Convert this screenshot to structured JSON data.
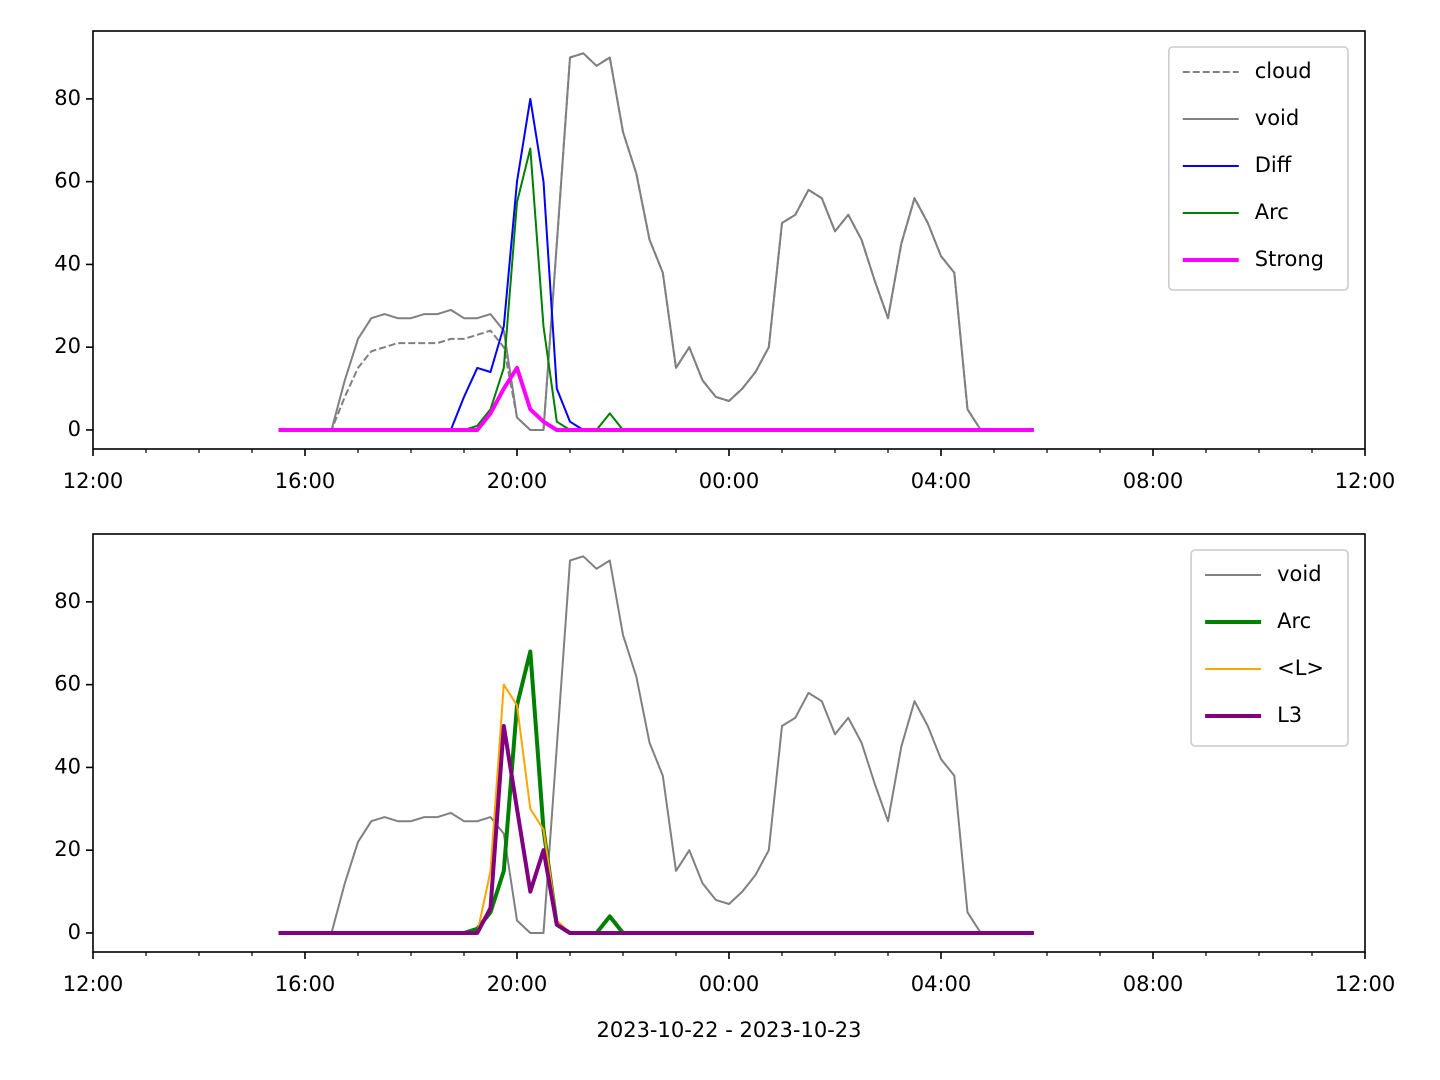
{
  "chart_data": [
    {
      "type": "line",
      "x": [
        "2023-10-22T15:30",
        "2023-10-22T15:45",
        "2023-10-22T16:00",
        "2023-10-22T16:15",
        "2023-10-22T16:30",
        "2023-10-22T16:45",
        "2023-10-22T17:00",
        "2023-10-22T17:15",
        "2023-10-22T17:30",
        "2023-10-22T17:45",
        "2023-10-22T18:00",
        "2023-10-22T18:15",
        "2023-10-22T18:30",
        "2023-10-22T18:45",
        "2023-10-22T19:00",
        "2023-10-22T19:15",
        "2023-10-22T19:30",
        "2023-10-22T19:45",
        "2023-10-22T20:00",
        "2023-10-22T20:15",
        "2023-10-22T20:30",
        "2023-10-22T20:45",
        "2023-10-22T21:00",
        "2023-10-22T21:15",
        "2023-10-22T21:30",
        "2023-10-22T21:45",
        "2023-10-22T22:00",
        "2023-10-22T22:15",
        "2023-10-22T22:30",
        "2023-10-22T22:45",
        "2023-10-22T23:00",
        "2023-10-22T23:15",
        "2023-10-22T23:30",
        "2023-10-22T23:45",
        "2023-10-23T00:00",
        "2023-10-23T00:15",
        "2023-10-23T00:30",
        "2023-10-23T00:45",
        "2023-10-23T01:00",
        "2023-10-23T01:15",
        "2023-10-23T01:30",
        "2023-10-23T01:45",
        "2023-10-23T02:00",
        "2023-10-23T02:15",
        "2023-10-23T02:30",
        "2023-10-23T02:45",
        "2023-10-23T03:00",
        "2023-10-23T03:15",
        "2023-10-23T03:30",
        "2023-10-23T03:45",
        "2023-10-23T04:00",
        "2023-10-23T04:15",
        "2023-10-23T04:30",
        "2023-10-23T04:45",
        "2023-10-23T05:00",
        "2023-10-23T05:15",
        "2023-10-23T05:30",
        "2023-10-23T05:45"
      ],
      "series": [
        {
          "name": "cloud",
          "color": "#808080",
          "linewidth": 2,
          "linestyle": "dashed",
          "values": [
            0,
            0,
            0,
            0,
            0,
            8,
            15,
            19,
            20,
            21,
            21,
            21,
            21,
            22,
            22,
            23,
            24,
            20,
            3,
            0,
            0,
            45,
            90,
            91,
            88,
            90,
            72,
            62,
            46,
            38,
            15,
            20,
            12,
            8,
            7,
            10,
            14,
            20,
            50,
            52,
            58,
            56,
            48,
            52,
            46,
            36,
            27,
            45,
            56,
            50,
            42,
            38,
            5,
            0,
            0,
            0,
            0,
            0
          ]
        },
        {
          "name": "void",
          "color": "#808080",
          "linewidth": 2,
          "linestyle": "solid",
          "values": [
            0,
            0,
            0,
            0,
            0,
            12,
            22,
            27,
            28,
            27,
            27,
            28,
            28,
            29,
            27,
            27,
            28,
            24,
            3,
            0,
            0,
            45,
            90,
            91,
            88,
            90,
            72,
            62,
            46,
            38,
            15,
            20,
            12,
            8,
            7,
            10,
            14,
            20,
            50,
            52,
            58,
            56,
            48,
            52,
            46,
            36,
            27,
            45,
            56,
            50,
            42,
            38,
            5,
            0,
            0,
            0,
            0,
            0
          ]
        },
        {
          "name": "Diff",
          "color": "#0000ff",
          "linewidth": 2,
          "linestyle": "solid",
          "values": [
            0,
            0,
            0,
            0,
            0,
            0,
            0,
            0,
            0,
            0,
            0,
            0,
            0,
            0,
            8,
            15,
            14,
            25,
            60,
            80,
            60,
            10,
            2,
            0,
            0,
            0,
            0,
            0,
            0,
            0,
            0,
            0,
            0,
            0,
            0,
            0,
            0,
            0,
            0,
            0,
            0,
            0,
            0,
            0,
            0,
            0,
            0,
            0,
            0,
            0,
            0,
            0,
            0,
            0,
            0,
            0,
            0,
            0
          ]
        },
        {
          "name": "Arc",
          "color": "#008000",
          "linewidth": 2,
          "linestyle": "solid",
          "values": [
            0,
            0,
            0,
            0,
            0,
            0,
            0,
            0,
            0,
            0,
            0,
            0,
            0,
            0,
            0,
            1,
            5,
            15,
            55,
            68,
            25,
            2,
            0,
            0,
            0,
            4,
            0,
            0,
            0,
            0,
            0,
            0,
            0,
            0,
            0,
            0,
            0,
            0,
            0,
            0,
            0,
            0,
            0,
            0,
            0,
            0,
            0,
            0,
            0,
            0,
            0,
            0,
            0,
            0,
            0,
            0,
            0,
            0
          ]
        },
        {
          "name": "Strong",
          "color": "#ff00ff",
          "linewidth": 4,
          "linestyle": "solid",
          "values": [
            0,
            0,
            0,
            0,
            0,
            0,
            0,
            0,
            0,
            0,
            0,
            0,
            0,
            0,
            0,
            0,
            4,
            10,
            15,
            5,
            2,
            0,
            0,
            0,
            0,
            0,
            0,
            0,
            0,
            0,
            0,
            0,
            0,
            0,
            0,
            0,
            0,
            0,
            0,
            0,
            0,
            0,
            0,
            0,
            0,
            0,
            0,
            0,
            0,
            0,
            0,
            0,
            0,
            0,
            0,
            0,
            0,
            0
          ]
        }
      ],
      "xlim": [
        "2023-10-22T12:00",
        "2023-10-23T12:00"
      ],
      "xticks": [
        {
          "value": "2023-10-22T12:00",
          "label": "12:00"
        },
        {
          "value": "2023-10-22T16:00",
          "label": "16:00"
        },
        {
          "value": "2023-10-22T20:00",
          "label": "20:00"
        },
        {
          "value": "2023-10-23T00:00",
          "label": "00:00"
        },
        {
          "value": "2023-10-23T04:00",
          "label": "04:00"
        },
        {
          "value": "2023-10-23T08:00",
          "label": "08:00"
        },
        {
          "value": "2023-10-23T12:00",
          "label": "12:00"
        }
      ],
      "xminorticks": [
        "2023-10-22T13:00",
        "2023-10-22T14:00",
        "2023-10-22T15:00",
        "2023-10-22T17:00",
        "2023-10-22T18:00",
        "2023-10-22T19:00",
        "2023-10-22T21:00",
        "2023-10-22T22:00",
        "2023-10-22T23:00",
        "2023-10-23T01:00",
        "2023-10-23T02:00",
        "2023-10-23T03:00",
        "2023-10-23T05:00",
        "2023-10-23T06:00",
        "2023-10-23T07:00",
        "2023-10-23T09:00",
        "2023-10-23T10:00",
        "2023-10-23T11:00"
      ],
      "ylim": [
        -4.6,
        96.4
      ],
      "yticks": [
        0,
        20,
        40,
        60,
        80
      ],
      "legend": "upper right"
    },
    {
      "type": "line",
      "x": [
        "2023-10-22T15:30",
        "2023-10-22T15:45",
        "2023-10-22T16:00",
        "2023-10-22T16:15",
        "2023-10-22T16:30",
        "2023-10-22T16:45",
        "2023-10-22T17:00",
        "2023-10-22T17:15",
        "2023-10-22T17:30",
        "2023-10-22T17:45",
        "2023-10-22T18:00",
        "2023-10-22T18:15",
        "2023-10-22T18:30",
        "2023-10-22T18:45",
        "2023-10-22T19:00",
        "2023-10-22T19:15",
        "2023-10-22T19:30",
        "2023-10-22T19:45",
        "2023-10-22T20:00",
        "2023-10-22T20:15",
        "2023-10-22T20:30",
        "2023-10-22T20:45",
        "2023-10-22T21:00",
        "2023-10-22T21:15",
        "2023-10-22T21:30",
        "2023-10-22T21:45",
        "2023-10-22T22:00",
        "2023-10-22T22:15",
        "2023-10-22T22:30",
        "2023-10-22T22:45",
        "2023-10-22T23:00",
        "2023-10-22T23:15",
        "2023-10-22T23:30",
        "2023-10-22T23:45",
        "2023-10-23T00:00",
        "2023-10-23T00:15",
        "2023-10-23T00:30",
        "2023-10-23T00:45",
        "2023-10-23T01:00",
        "2023-10-23T01:15",
        "2023-10-23T01:30",
        "2023-10-23T01:45",
        "2023-10-23T02:00",
        "2023-10-23T02:15",
        "2023-10-23T02:30",
        "2023-10-23T02:45",
        "2023-10-23T03:00",
        "2023-10-23T03:15",
        "2023-10-23T03:30",
        "2023-10-23T03:45",
        "2023-10-23T04:00",
        "2023-10-23T04:15",
        "2023-10-23T04:30",
        "2023-10-23T04:45",
        "2023-10-23T05:00",
        "2023-10-23T05:15",
        "2023-10-23T05:30",
        "2023-10-23T05:45"
      ],
      "series": [
        {
          "name": "void",
          "color": "#808080",
          "linewidth": 2,
          "linestyle": "solid",
          "values": [
            0,
            0,
            0,
            0,
            0,
            12,
            22,
            27,
            28,
            27,
            27,
            28,
            28,
            29,
            27,
            27,
            28,
            24,
            3,
            0,
            0,
            45,
            90,
            91,
            88,
            90,
            72,
            62,
            46,
            38,
            15,
            20,
            12,
            8,
            7,
            10,
            14,
            20,
            50,
            52,
            58,
            56,
            48,
            52,
            46,
            36,
            27,
            45,
            56,
            50,
            42,
            38,
            5,
            0,
            0,
            0,
            0,
            0
          ]
        },
        {
          "name": "Arc",
          "color": "#008000",
          "linewidth": 4,
          "linestyle": "solid",
          "values": [
            0,
            0,
            0,
            0,
            0,
            0,
            0,
            0,
            0,
            0,
            0,
            0,
            0,
            0,
            0,
            1,
            5,
            15,
            55,
            68,
            25,
            2,
            0,
            0,
            0,
            4,
            0,
            0,
            0,
            0,
            0,
            0,
            0,
            0,
            0,
            0,
            0,
            0,
            0,
            0,
            0,
            0,
            0,
            0,
            0,
            0,
            0,
            0,
            0,
            0,
            0,
            0,
            0,
            0,
            0,
            0,
            0,
            0
          ]
        },
        {
          "name": "<L>",
          "color": "#ffa500",
          "linewidth": 2,
          "linestyle": "solid",
          "values": [
            0,
            0,
            0,
            0,
            0,
            0,
            0,
            0,
            0,
            0,
            0,
            0,
            0,
            0,
            0,
            0,
            15,
            60,
            55,
            30,
            25,
            3,
            0,
            0,
            0,
            0,
            0,
            0,
            0,
            0,
            0,
            0,
            0,
            0,
            0,
            0,
            0,
            0,
            0,
            0,
            0,
            0,
            0,
            0,
            0,
            0,
            0,
            0,
            0,
            0,
            0,
            0,
            0,
            0,
            0,
            0,
            0,
            0
          ]
        },
        {
          "name": "L3",
          "color": "#800080",
          "linewidth": 4,
          "linestyle": "solid",
          "values": [
            0,
            0,
            0,
            0,
            0,
            0,
            0,
            0,
            0,
            0,
            0,
            0,
            0,
            0,
            0,
            0,
            6,
            50,
            30,
            10,
            20,
            2,
            0,
            0,
            0,
            0,
            0,
            0,
            0,
            0,
            0,
            0,
            0,
            0,
            0,
            0,
            0,
            0,
            0,
            0,
            0,
            0,
            0,
            0,
            0,
            0,
            0,
            0,
            0,
            0,
            0,
            0,
            0,
            0,
            0,
            0,
            0,
            0
          ]
        }
      ],
      "xlabel": "2023-10-22 - 2023-10-23",
      "xlim": [
        "2023-10-22T12:00",
        "2023-10-23T12:00"
      ],
      "xticks": [
        {
          "value": "2023-10-22T12:00",
          "label": "12:00"
        },
        {
          "value": "2023-10-22T16:00",
          "label": "16:00"
        },
        {
          "value": "2023-10-22T20:00",
          "label": "20:00"
        },
        {
          "value": "2023-10-23T00:00",
          "label": "00:00"
        },
        {
          "value": "2023-10-23T04:00",
          "label": "04:00"
        },
        {
          "value": "2023-10-23T08:00",
          "label": "08:00"
        },
        {
          "value": "2023-10-23T12:00",
          "label": "12:00"
        }
      ],
      "xminorticks": [
        "2023-10-22T13:00",
        "2023-10-22T14:00",
        "2023-10-22T15:00",
        "2023-10-22T17:00",
        "2023-10-22T18:00",
        "2023-10-22T19:00",
        "2023-10-22T21:00",
        "2023-10-22T22:00",
        "2023-10-22T23:00",
        "2023-10-23T01:00",
        "2023-10-23T02:00",
        "2023-10-23T03:00",
        "2023-10-23T05:00",
        "2023-10-23T06:00",
        "2023-10-23T07:00",
        "2023-10-23T09:00",
        "2023-10-23T10:00",
        "2023-10-23T11:00"
      ],
      "ylim": [
        -4.6,
        96.4
      ],
      "yticks": [
        0,
        20,
        40,
        60,
        80
      ],
      "legend": "upper right"
    }
  ]
}
